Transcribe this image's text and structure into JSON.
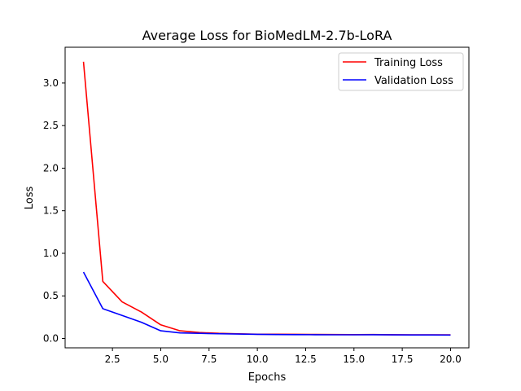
{
  "chart_data": {
    "type": "line",
    "title": "Average Loss for BioMedLM-2.7b-LoRA",
    "xlabel": "Epochs",
    "ylabel": "Loss",
    "xlim": [
      0.05,
      20.95
    ],
    "ylim": [
      -0.11,
      3.42
    ],
    "xticks": [
      "2.5",
      "5.0",
      "7.5",
      "10.0",
      "12.5",
      "15.0",
      "17.5",
      "20.0"
    ],
    "yticks": [
      "0.0",
      "0.5",
      "1.0",
      "1.5",
      "2.0",
      "2.5",
      "3.0"
    ],
    "grid": false,
    "legend_position": "top-right",
    "x": [
      1,
      2,
      3,
      4,
      5,
      6,
      7,
      8,
      9,
      10,
      11,
      12,
      13,
      14,
      15,
      16,
      17,
      18,
      19,
      20
    ],
    "series": [
      {
        "name": "Training Loss",
        "color": "#ff0000",
        "values": [
          3.25,
          0.67,
          0.43,
          0.31,
          0.16,
          0.09,
          0.07,
          0.06,
          0.055,
          0.05,
          0.05,
          0.048,
          0.047,
          0.046,
          0.045,
          0.046,
          0.044,
          0.043,
          0.043,
          0.042
        ]
      },
      {
        "name": "Validation Loss",
        "color": "#0000ff",
        "values": [
          0.78,
          0.35,
          0.27,
          0.19,
          0.09,
          0.065,
          0.06,
          0.055,
          0.052,
          0.048,
          0.046,
          0.045,
          0.044,
          0.043,
          0.043,
          0.044,
          0.042,
          0.041,
          0.041,
          0.04
        ]
      }
    ]
  }
}
